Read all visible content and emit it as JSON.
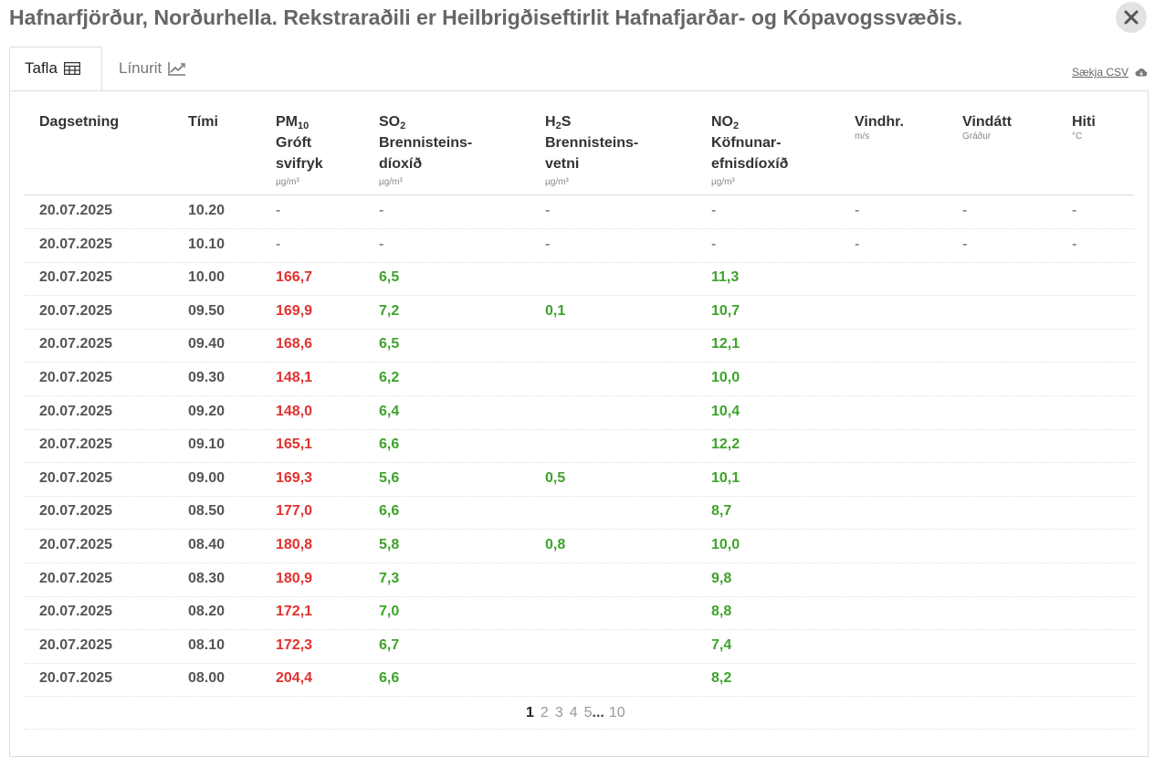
{
  "title": "Hafnarfjörður, Norðurhella. Rekstraraðili er Heilbrigðiseftirlit Hafnafjarðar- og Kópavogssvæðis.",
  "tabs": {
    "table": "Tafla",
    "chart": "Línurit"
  },
  "csv_label": "Sækja CSV",
  "columns": {
    "date": "Dagsetning",
    "time": "Tími",
    "pm": {
      "chem": "PM",
      "sub": "10",
      "line1": "Gróft",
      "line2": "svifryk",
      "unit": "µg/m³"
    },
    "so2": {
      "chem": "SO",
      "sub": "2",
      "line1": "Brennisteins-",
      "line2": "díoxíð",
      "unit": "µg/m³"
    },
    "h2s": {
      "chem_a": "H",
      "sub": "2",
      "chem_b": "S",
      "line1": "Brennisteins-",
      "line2": "vetni",
      "unit": "µg/m³"
    },
    "no2": {
      "chem": "NO",
      "sub": "2",
      "line1": "Köfnunar-",
      "line2": "efnisdíoxíð",
      "unit": "µg/m³"
    },
    "wind": {
      "label": "Vindhr.",
      "unit": "m/s"
    },
    "dir": {
      "label": "Vindátt",
      "unit": "Gráður"
    },
    "temp": {
      "label": "Hiti",
      "unit": "°C"
    }
  },
  "rows": [
    {
      "date": "20.07.2025",
      "time": "10.20",
      "pm": "-",
      "so2": "-",
      "h2s": "-",
      "no2": "-",
      "wind": "-",
      "dir": "-",
      "temp": "-"
    },
    {
      "date": "20.07.2025",
      "time": "10.10",
      "pm": "-",
      "so2": "-",
      "h2s": "-",
      "no2": "-",
      "wind": "-",
      "dir": "-",
      "temp": "-"
    },
    {
      "date": "20.07.2025",
      "time": "10.00",
      "pm": "166,7",
      "so2": "6,5",
      "h2s": "",
      "no2": "11,3",
      "wind": "",
      "dir": "",
      "temp": ""
    },
    {
      "date": "20.07.2025",
      "time": "09.50",
      "pm": "169,9",
      "so2": "7,2",
      "h2s": "0,1",
      "no2": "10,7",
      "wind": "",
      "dir": "",
      "temp": ""
    },
    {
      "date": "20.07.2025",
      "time": "09.40",
      "pm": "168,6",
      "so2": "6,5",
      "h2s": "",
      "no2": "12,1",
      "wind": "",
      "dir": "",
      "temp": ""
    },
    {
      "date": "20.07.2025",
      "time": "09.30",
      "pm": "148,1",
      "so2": "6,2",
      "h2s": "",
      "no2": "10,0",
      "wind": "",
      "dir": "",
      "temp": ""
    },
    {
      "date": "20.07.2025",
      "time": "09.20",
      "pm": "148,0",
      "so2": "6,4",
      "h2s": "",
      "no2": "10,4",
      "wind": "",
      "dir": "",
      "temp": ""
    },
    {
      "date": "20.07.2025",
      "time": "09.10",
      "pm": "165,1",
      "so2": "6,6",
      "h2s": "",
      "no2": "12,2",
      "wind": "",
      "dir": "",
      "temp": ""
    },
    {
      "date": "20.07.2025",
      "time": "09.00",
      "pm": "169,3",
      "so2": "5,6",
      "h2s": "0,5",
      "no2": "10,1",
      "wind": "",
      "dir": "",
      "temp": ""
    },
    {
      "date": "20.07.2025",
      "time": "08.50",
      "pm": "177,0",
      "so2": "6,6",
      "h2s": "",
      "no2": "8,7",
      "wind": "",
      "dir": "",
      "temp": ""
    },
    {
      "date": "20.07.2025",
      "time": "08.40",
      "pm": "180,8",
      "so2": "5,8",
      "h2s": "0,8",
      "no2": "10,0",
      "wind": "",
      "dir": "",
      "temp": ""
    },
    {
      "date": "20.07.2025",
      "time": "08.30",
      "pm": "180,9",
      "so2": "7,3",
      "h2s": "",
      "no2": "9,8",
      "wind": "",
      "dir": "",
      "temp": ""
    },
    {
      "date": "20.07.2025",
      "time": "08.20",
      "pm": "172,1",
      "so2": "7,0",
      "h2s": "",
      "no2": "8,8",
      "wind": "",
      "dir": "",
      "temp": ""
    },
    {
      "date": "20.07.2025",
      "time": "08.10",
      "pm": "172,3",
      "so2": "6,7",
      "h2s": "",
      "no2": "7,4",
      "wind": "",
      "dir": "",
      "temp": ""
    },
    {
      "date": "20.07.2025",
      "time": "08.00",
      "pm": "204,4",
      "so2": "6,6",
      "h2s": "",
      "no2": "8,2",
      "wind": "",
      "dir": "",
      "temp": ""
    }
  ],
  "value_colors": {
    "pm": "#e0322f",
    "so2": "#3ea32b",
    "h2s": "#3ea32b",
    "no2": "#3ea32b"
  },
  "pagination": {
    "current": "1",
    "pages": [
      "2",
      "3",
      "4",
      "5"
    ],
    "ellipsis": "...",
    "last": "10"
  },
  "icons": {
    "close": "close-icon",
    "table": "table-icon",
    "chart": "line-chart-icon",
    "csv": "cloud-download-icon"
  }
}
